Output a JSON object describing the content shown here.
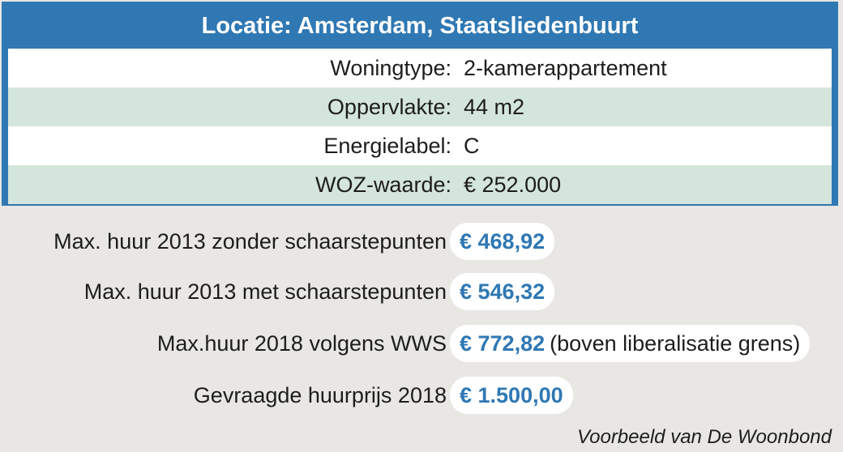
{
  "header": {
    "title": "Locatie: Amsterdam, Staatsliedenbuurt"
  },
  "properties": [
    {
      "label": "Woningtype:",
      "value": "2-kamerappartement"
    },
    {
      "label": "Oppervlakte:",
      "value": "44 m2"
    },
    {
      "label": "Energielabel:",
      "value": "C"
    },
    {
      "label": "WOZ-waarde:",
      "value": "€ 252.000"
    }
  ],
  "rents": [
    {
      "label": "Max. huur 2013 zonder schaarstepunten",
      "amount": "€ 468,92",
      "note": ""
    },
    {
      "label": "Max. huur 2013 met schaarstepunten",
      "amount": "€ 546,32",
      "note": ""
    },
    {
      "label": "Max.huur 2018 volgens WWS",
      "amount": "€ 772,82",
      "note": "(boven liberalisatie grens)"
    },
    {
      "label": "Gevraagde huurprijs 2018",
      "amount": "€ 1.500,00",
      "note": ""
    }
  ],
  "source": "Voorbeeld van De Woonbond",
  "colors": {
    "accent": "#2f78b3",
    "row_alt": "#d4e5db",
    "background": "#e8e7e3"
  }
}
